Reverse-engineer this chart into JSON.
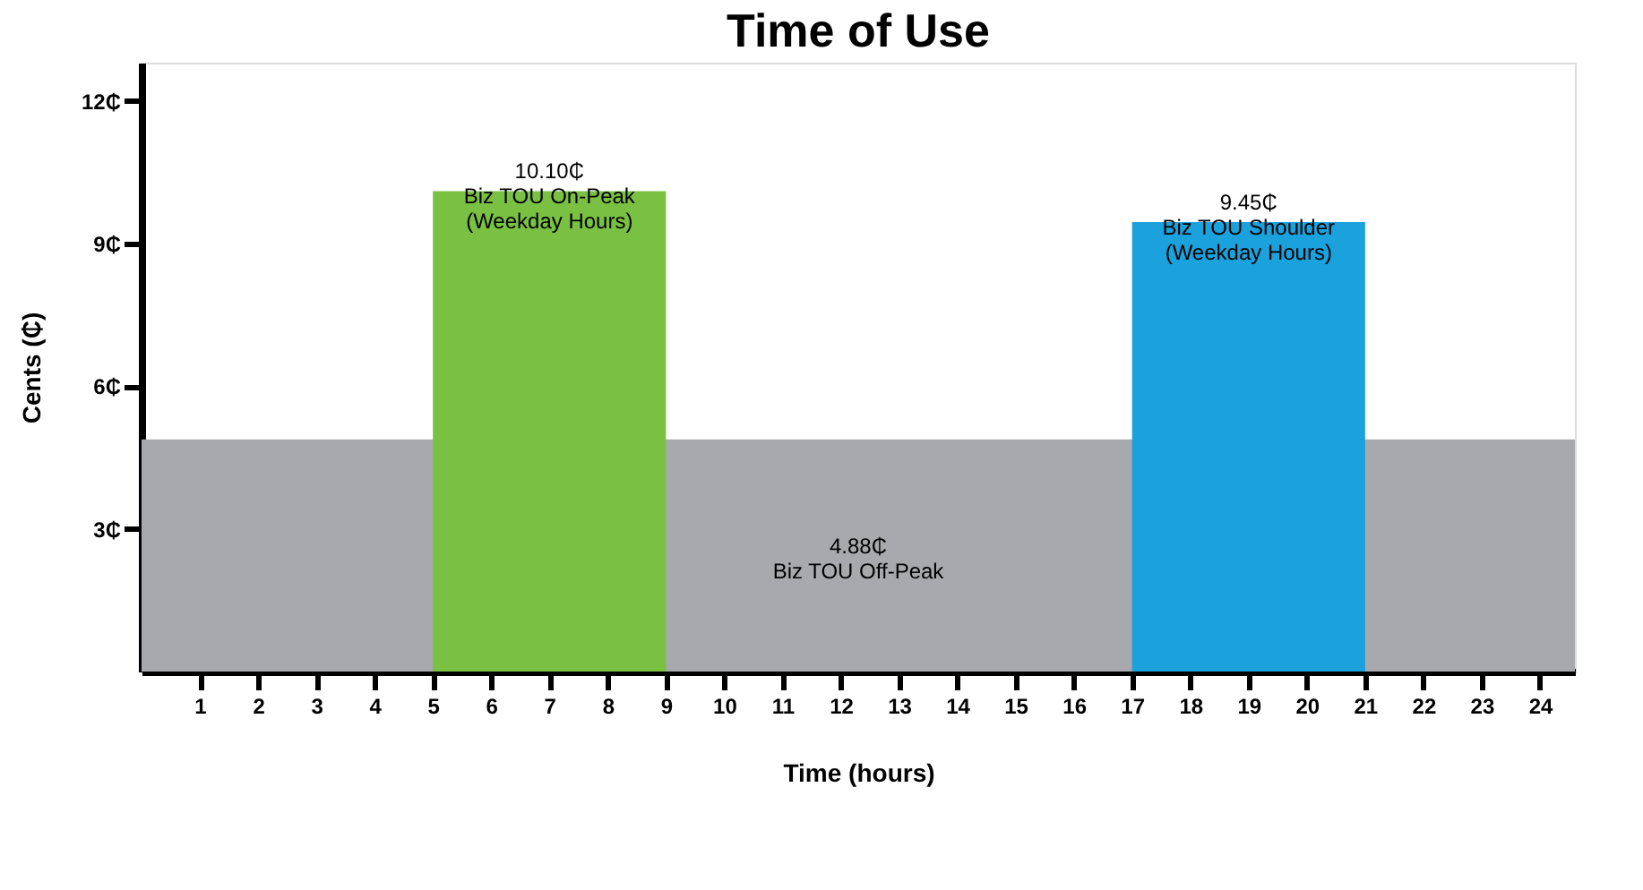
{
  "chart_data": {
    "type": "area",
    "title": "Time of Use",
    "xlabel": "Time (hours)",
    "ylabel": "Cents (₵)",
    "series": [
      {
        "x": [
          0,
          24.6
        ],
        "values": [
          4.88,
          4.88
        ],
        "color": "#a7a9ac"
      },
      {
        "x": [
          5,
          9
        ],
        "values": [
          10.1,
          10.1
        ],
        "color": "#7ac143"
      },
      {
        "x": [
          17,
          21
        ],
        "values": [
          9.45,
          9.45
        ],
        "color": "#1ba1dc"
      }
    ],
    "xlim": [
      0,
      24.6
    ],
    "xticks": [
      1,
      2,
      3,
      4,
      5,
      6,
      7,
      8,
      9,
      10,
      11,
      12,
      13,
      14,
      15,
      16,
      17,
      18,
      19,
      20,
      21,
      22,
      23,
      24
    ],
    "ylim": [
      0,
      12.8
    ],
    "yticks": [
      {
        "value": 3,
        "label": "3₵"
      },
      {
        "value": 6,
        "label": "6₵"
      },
      {
        "value": 9,
        "label": "9₵"
      },
      {
        "value": 12,
        "label": "12₵"
      }
    ],
    "annotations": [
      {
        "text": "10.10₵\nBiz TOU On-Peak\n(Weekday Hours)",
        "x": 7,
        "y": 10.1
      },
      {
        "text": "9.45₵\nBiz TOU Shoulder\n(Weekday Hours)",
        "x": 19,
        "y": 9.45
      },
      "4.88₵\nBiz TOU Off-Peak"
    ],
    "grid": false
  }
}
